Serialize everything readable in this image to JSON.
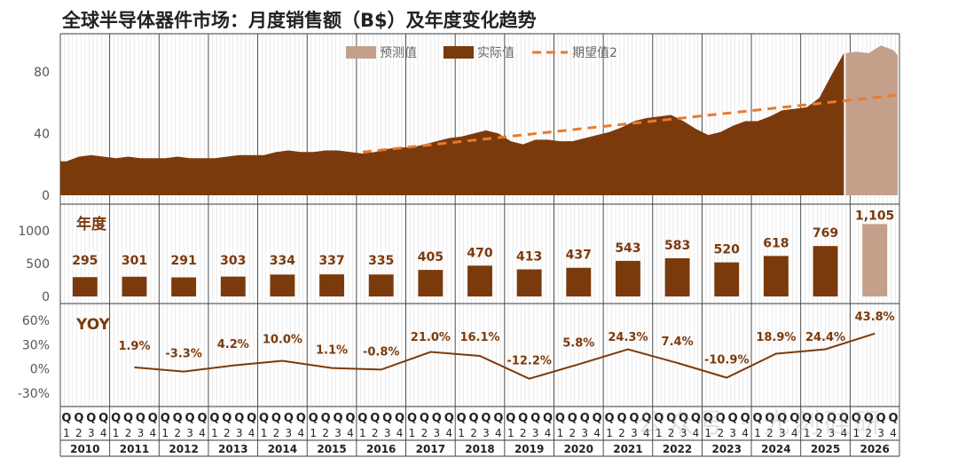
{
  "title": "全球半导体器件市场：月度销售额（B$）及年度变化趋势",
  "colors": {
    "actual": "#7B3A0C",
    "forecast": "#C4A08B",
    "expected": "#E97A2D",
    "text": "#7B3A0C",
    "axis": "#555555",
    "grid": "#d9d9d9"
  },
  "watermark": "公众号 · 光刻硅研",
  "chart_data": [
    {
      "id": "monthly",
      "type": "area",
      "title": "全球半导体器件市场：月度销售额（B$）及年度变化趋势",
      "ylim": [
        0,
        100
      ],
      "yticks": [
        0,
        40,
        80
      ],
      "legend_position": "top-center",
      "legend": [
        "预测值",
        "实际值",
        "期望值2"
      ],
      "years": [
        "2010",
        "2011",
        "2012",
        "2013",
        "2014",
        "2015",
        "2016",
        "2017",
        "2018",
        "2019",
        "2020",
        "2021",
        "2022",
        "2023",
        "2024",
        "2025",
        "2026"
      ],
      "quarters": [
        "Q",
        "Q",
        "Q",
        "Q"
      ],
      "quarter_nums": [
        "1",
        "2",
        "3",
        "4"
      ],
      "series": [
        {
          "name": "实际值",
          "type": "area",
          "points": [
            [
              "2010Q1",
              22
            ],
            [
              "2010Q2",
              25
            ],
            [
              "2010Q3",
              26
            ],
            [
              "2010Q4",
              25
            ],
            [
              "2011Q1",
              24
            ],
            [
              "2011Q2",
              25
            ],
            [
              "2011Q3",
              24
            ],
            [
              "2011Q4",
              24
            ],
            [
              "2012Q1",
              24
            ],
            [
              "2012Q2",
              25
            ],
            [
              "2012Q3",
              24
            ],
            [
              "2012Q4",
              24
            ],
            [
              "2013Q1",
              24
            ],
            [
              "2013Q2",
              25
            ],
            [
              "2013Q3",
              26
            ],
            [
              "2013Q4",
              26
            ],
            [
              "2014Q1",
              26
            ],
            [
              "2014Q2",
              28
            ],
            [
              "2014Q3",
              29
            ],
            [
              "2014Q4",
              28
            ],
            [
              "2015Q1",
              28
            ],
            [
              "2015Q2",
              29
            ],
            [
              "2015Q3",
              29
            ],
            [
              "2015Q4",
              28
            ],
            [
              "2016Q1",
              27
            ],
            [
              "2016Q2",
              28
            ],
            [
              "2016Q3",
              30
            ],
            [
              "2016Q4",
              31
            ],
            [
              "2017Q1",
              31
            ],
            [
              "2017Q2",
              33
            ],
            [
              "2017Q3",
              35
            ],
            [
              "2017Q4",
              37
            ],
            [
              "2018Q1",
              38
            ],
            [
              "2018Q2",
              40
            ],
            [
              "2018Q3",
              42
            ],
            [
              "2018Q4",
              40
            ],
            [
              "2019Q1",
              35
            ],
            [
              "2019Q2",
              33
            ],
            [
              "2019Q3",
              36
            ],
            [
              "2019Q4",
              36
            ],
            [
              "2020Q1",
              35
            ],
            [
              "2020Q2",
              35
            ],
            [
              "2020Q3",
              37
            ],
            [
              "2020Q4",
              39
            ],
            [
              "2021Q1",
              41
            ],
            [
              "2021Q2",
              44
            ],
            [
              "2021Q3",
              48
            ],
            [
              "2021Q4",
              50
            ],
            [
              "2022Q1",
              51
            ],
            [
              "2022Q2",
              52
            ],
            [
              "2022Q3",
              48
            ],
            [
              "2022Q4",
              43
            ],
            [
              "2023Q1",
              39
            ],
            [
              "2023Q2",
              41
            ],
            [
              "2023Q3",
              45
            ],
            [
              "2023Q4",
              48
            ],
            [
              "2024Q1",
              48
            ],
            [
              "2024Q2",
              51
            ],
            [
              "2024Q3",
              55
            ],
            [
              "2024Q4",
              56
            ],
            [
              "2025Q1",
              57
            ],
            [
              "2025Q2",
              63
            ],
            [
              "2025Q3",
              78
            ],
            [
              "2025Q4",
              92
            ]
          ]
        },
        {
          "name": "预测值",
          "type": "area",
          "points": [
            [
              "2026Q1",
              93
            ],
            [
              "2026Q2",
              92
            ],
            [
              "2026Q3",
              97
            ],
            [
              "2026Q4",
              94
            ]
          ]
        },
        {
          "name": "期望值2",
          "type": "line",
          "dashed": true,
          "points": [
            [
              "2016Q1",
              28
            ],
            [
              "2026Q4",
              65
            ]
          ]
        }
      ]
    },
    {
      "id": "annual",
      "type": "bar",
      "label": "年度",
      "ylim": [
        0,
        1300
      ],
      "yticks": [
        0,
        500,
        1000
      ],
      "categories": [
        "2010",
        "2011",
        "2012",
        "2013",
        "2014",
        "2015",
        "2016",
        "2017",
        "2018",
        "2019",
        "2020",
        "2021",
        "2022",
        "2023",
        "2024",
        "2025",
        "2026"
      ],
      "values": [
        295,
        301,
        291,
        303,
        334,
        337,
        335,
        405,
        470,
        413,
        437,
        543,
        583,
        520,
        618,
        769,
        1105
      ],
      "labels": [
        "295",
        "301",
        "291",
        "303",
        "334",
        "337",
        "335",
        "405",
        "470",
        "413",
        "437",
        "543",
        "583",
        "520",
        "618",
        "769",
        "1,105"
      ],
      "forecast_index": 16
    },
    {
      "id": "yoy",
      "type": "line",
      "label": "YOY",
      "ylim": [
        -40,
        70
      ],
      "yticks": [
        60,
        30,
        0,
        -30
      ],
      "ytick_labels": [
        "60%",
        "30%",
        "0%",
        "-30%"
      ],
      "categories": [
        "2011",
        "2012",
        "2013",
        "2014",
        "2015",
        "2016",
        "2017",
        "2018",
        "2019",
        "2020",
        "2021",
        "2022",
        "2023",
        "2024",
        "2025",
        "2026"
      ],
      "values": [
        1.9,
        -3.3,
        4.2,
        10.0,
        1.1,
        -0.8,
        21.0,
        16.1,
        -12.2,
        5.8,
        24.3,
        7.4,
        -10.9,
        18.9,
        24.4,
        43.8
      ],
      "labels": [
        "1.9%",
        "-3.3%",
        "4.2%",
        "10.0%",
        "1.1%",
        "-0.8%",
        "21.0%",
        "16.1%",
        "-12.2%",
        "5.8%",
        "24.3%",
        "7.4%",
        "-10.9%",
        "18.9%",
        "24.4%",
        "43.8%"
      ]
    }
  ]
}
